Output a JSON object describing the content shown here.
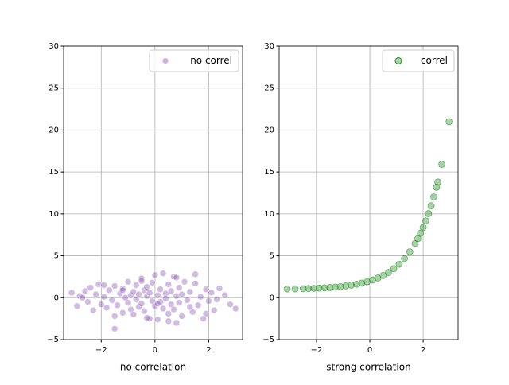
{
  "chart_data": [
    {
      "type": "scatter",
      "xlabel": "no correlation",
      "grid": true,
      "legend": "upper right",
      "xlim": [
        -3.4,
        3.26
      ],
      "ylim": [
        -5,
        30
      ],
      "xticks": [
        {
          "value": -2,
          "label": "−2"
        },
        0,
        2
      ],
      "yticks": [
        {
          "value": -5,
          "label": "−5"
        },
        0,
        5,
        10,
        15,
        20,
        25,
        30
      ],
      "series": [
        {
          "name": "no correl",
          "color": "#7b3fa8",
          "x": [
            -3.1,
            -2.9,
            -2.8,
            -2.6,
            -2.5,
            -2.4,
            -2.3,
            -2.2,
            -2.1,
            -2.0,
            -1.9,
            -1.8,
            -1.7,
            -1.6,
            -1.5,
            -1.5,
            -1.4,
            -1.3,
            -1.2,
            -1.2,
            -1.1,
            -1.0,
            -1.0,
            -0.9,
            -0.9,
            -0.8,
            -0.8,
            -0.7,
            -0.7,
            -0.6,
            -0.6,
            -0.5,
            -0.5,
            -0.4,
            -0.4,
            -0.3,
            -0.3,
            -0.2,
            -0.2,
            -0.1,
            -0.1,
            0.0,
            0.0,
            0.1,
            0.1,
            0.2,
            0.2,
            0.3,
            0.3,
            0.4,
            0.4,
            0.5,
            0.5,
            0.6,
            0.6,
            0.7,
            0.7,
            0.8,
            0.8,
            0.9,
            0.9,
            1.0,
            1.0,
            1.1,
            1.2,
            1.3,
            1.4,
            1.5,
            1.6,
            1.7,
            1.8,
            1.9,
            2.0,
            2.1,
            2.2,
            2.4,
            2.6,
            2.8,
            3.0,
            -1.5,
            -0.5,
            0.5,
            1.5,
            -2.7,
            2.3,
            -1.9,
            1.9,
            0.1,
            -0.3,
            0.8,
            -1.2,
            1.3
          ],
          "y": [
            0.6,
            -1.0,
            0.2,
            0.8,
            -0.5,
            1.2,
            -1.5,
            0.4,
            1.6,
            -0.8,
            0.1,
            -1.2,
            0.9,
            -0.3,
            1.4,
            -3.7,
            -0.9,
            0.5,
            -1.8,
            1.1,
            0.0,
            -0.6,
            1.9,
            0.3,
            -1.4,
            0.7,
            -2.0,
            1.5,
            -0.2,
            0.4,
            -1.1,
            2.3,
            -0.7,
            0.9,
            -1.6,
            0.2,
            1.3,
            -2.5,
            0.6,
            -0.4,
            1.8,
            2.7,
            -1.0,
            0.3,
            -2.6,
            1.0,
            -0.5,
            2.9,
            -1.3,
            0.5,
            -0.1,
            1.6,
            -1.9,
            0.8,
            -0.8,
            2.5,
            -1.4,
            0.2,
            -3.0,
            1.2,
            -0.6,
            0.4,
            -2.2,
            1.9,
            -0.3,
            0.7,
            -1.7,
            2.8,
            -0.9,
            0.1,
            -2.5,
            1.0,
            -0.4,
            0.6,
            -1.5,
            1.1,
            0.3,
            -0.8,
            -1.3,
            -2.2,
            2.0,
            -2.8,
            1.7,
            0.0,
            -0.2,
            1.5,
            -1.9,
            -0.7,
            -2.4,
            2.4,
            0.9,
            -1.1
          ]
        }
      ]
    },
    {
      "type": "scatter",
      "xlabel": "strong correlation",
      "grid": true,
      "legend": "upper right",
      "xlim": [
        -3.4,
        3.31
      ],
      "ylim": [
        -5,
        30
      ],
      "xticks": [
        {
          "value": -2,
          "label": "−2"
        },
        0,
        2
      ],
      "yticks": [
        {
          "value": -5,
          "label": "−5"
        },
        0,
        5,
        10,
        15,
        20,
        25,
        30
      ],
      "series": [
        {
          "name": "correl",
          "color": "#228b22",
          "x": [
            -3.1,
            -2.8,
            -2.5,
            -2.3,
            -2.1,
            -1.9,
            -1.7,
            -1.5,
            -1.3,
            -1.1,
            -0.9,
            -0.7,
            -0.5,
            -0.3,
            -0.1,
            0.1,
            0.3,
            0.5,
            0.7,
            0.9,
            1.1,
            1.3,
            1.5,
            1.7,
            1.8,
            1.9,
            2.0,
            2.1,
            2.2,
            2.3,
            2.4,
            2.5,
            2.55,
            2.7,
            2.97
          ],
          "y": [
            1.05,
            1.06,
            1.08,
            1.1,
            1.12,
            1.15,
            1.18,
            1.22,
            1.27,
            1.33,
            1.41,
            1.5,
            1.61,
            1.74,
            1.9,
            2.11,
            2.35,
            2.65,
            3.01,
            3.46,
            4.0,
            4.67,
            5.48,
            6.47,
            7.05,
            7.69,
            8.39,
            9.17,
            10.03,
            10.97,
            12.02,
            13.18,
            13.8,
            15.9,
            21.0
          ]
        }
      ]
    }
  ]
}
